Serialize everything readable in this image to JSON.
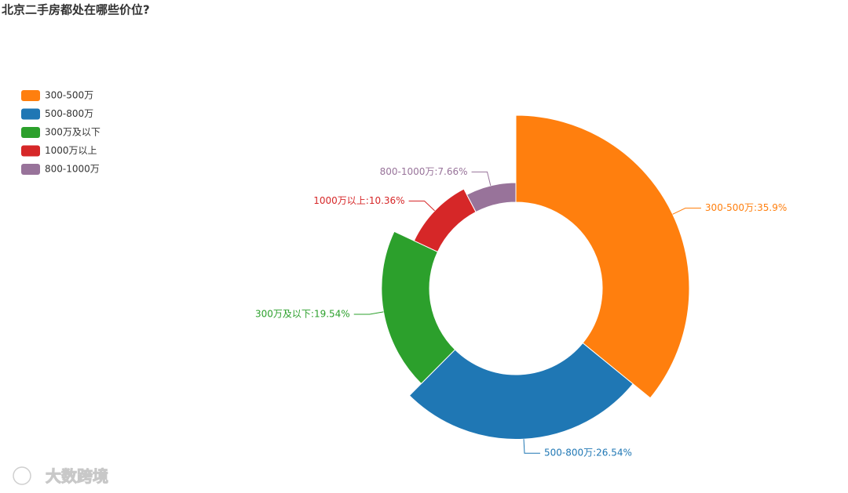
{
  "chart_data": {
    "type": "pie",
    "rose": true,
    "title": "北京二手房都处在哪些价位?",
    "categories": [
      "300-500万",
      "500-800万",
      "300万及以下",
      "1000万以上",
      "800-1000万"
    ],
    "values": [
      35.9,
      26.54,
      19.54,
      10.36,
      7.66
    ],
    "value_labels": [
      "300-500万:35.9%",
      "500-800万:26.54%",
      "300万及以下:19.54%",
      "1000万以上:10.36%",
      "800-1000万:7.66%"
    ],
    "colors": [
      "#ff7f0e",
      "#1f77b4",
      "#2ca02c",
      "#d62728",
      "#98739a"
    ],
    "legend": "top-left",
    "watermark": "大数跨境"
  }
}
